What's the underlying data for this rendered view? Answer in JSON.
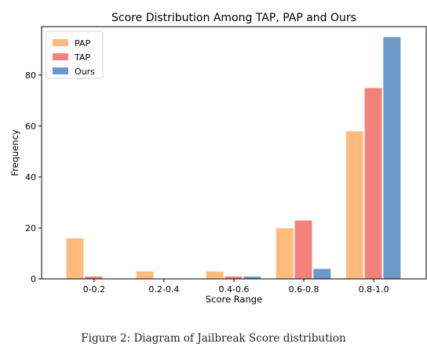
{
  "chart_data": {
    "type": "bar",
    "title": "Score Distribution Among TAP, PAP and Ours",
    "xlabel": "Score Range",
    "ylabel": "Frequency",
    "categories": [
      "0-0.2",
      "0.2-0.4",
      "0.4-0.6",
      "0.6-0.8",
      "0.8-1.0"
    ],
    "series": [
      {
        "name": "PAP",
        "color": "#fdbb7d",
        "values": [
          16,
          3,
          3,
          20,
          58
        ]
      },
      {
        "name": "TAP",
        "color": "#f2827a",
        "values": [
          1,
          0,
          1,
          23,
          75
        ]
      },
      {
        "name": "Ours",
        "color": "#6b9ac8",
        "values": [
          0,
          0,
          1,
          4,
          95
        ]
      }
    ],
    "ylim": [
      0,
      99
    ],
    "yticks": [
      0,
      20,
      40,
      60,
      80
    ],
    "legend": "top-left",
    "grid": false
  },
  "caption": "Figure 2: Diagram of Jailbreak Score distribution"
}
